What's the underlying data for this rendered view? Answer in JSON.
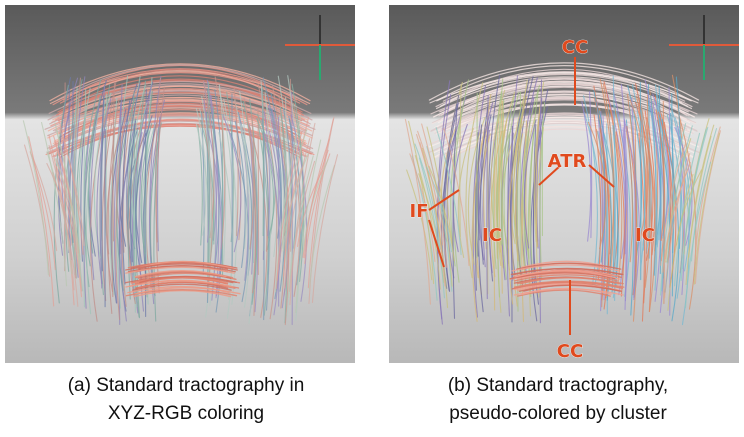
{
  "panels": [
    {
      "id": "a",
      "caption_line1": "(a) Standard tractography in",
      "caption_line2": "XYZ-RGB coloring",
      "labels": []
    },
    {
      "id": "b",
      "caption_line1": "(b) Standard tractography,",
      "caption_line2": "pseudo-colored by cluster",
      "labels": [
        "CC",
        "ATR",
        "IF",
        "IC",
        "IC",
        "CC"
      ]
    }
  ],
  "colors": {
    "label": "#e04a1e",
    "background_top": "#6f6f6f",
    "background_bottom": "#c9c9c9"
  }
}
